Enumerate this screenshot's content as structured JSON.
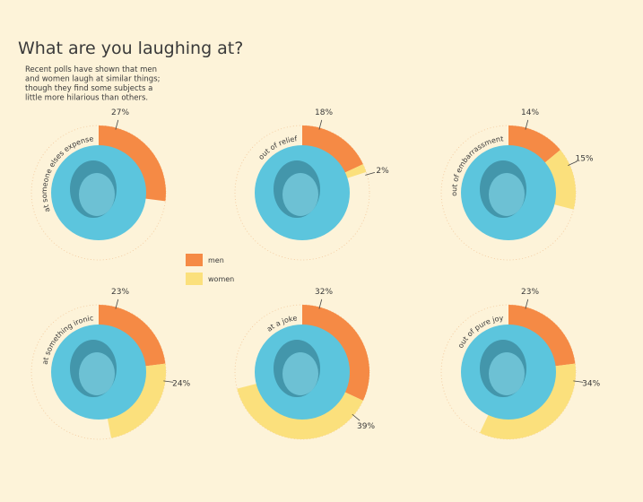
{
  "title": "What are you laughing at?",
  "description": [
    "Recent polls have shown that men",
    "and women laugh at similar things;",
    "though they find some subjects a",
    "little more hilarious than others."
  ],
  "legend": [
    {
      "name": "men",
      "color": "#f58a45"
    },
    {
      "name": "women",
      "color": "#fbe07c"
    }
  ],
  "chart_data": [
    {
      "type": "radial",
      "category": "at someone elses expense",
      "values": [
        27
      ],
      "value_labels": [
        "27%"
      ]
    },
    {
      "type": "radial",
      "category": "out of relief",
      "values": [
        18,
        2
      ],
      "value_labels": [
        "18%",
        "2%"
      ]
    },
    {
      "type": "radial",
      "category": "out of embarrassment",
      "values": [
        14,
        15
      ],
      "value_labels": [
        "14%",
        "15%"
      ]
    },
    {
      "type": "radial",
      "category": "at something ironic",
      "values": [
        23,
        24
      ],
      "value_labels": [
        "23%",
        "24%"
      ]
    },
    {
      "type": "radial",
      "category": "at a joke",
      "values": [
        32,
        39
      ],
      "value_labels": [
        "32%",
        "39%"
      ]
    },
    {
      "type": "radial",
      "category": "out of pure joy",
      "values": [
        23,
        34
      ],
      "value_labels": [
        "23%",
        "34%"
      ]
    }
  ]
}
